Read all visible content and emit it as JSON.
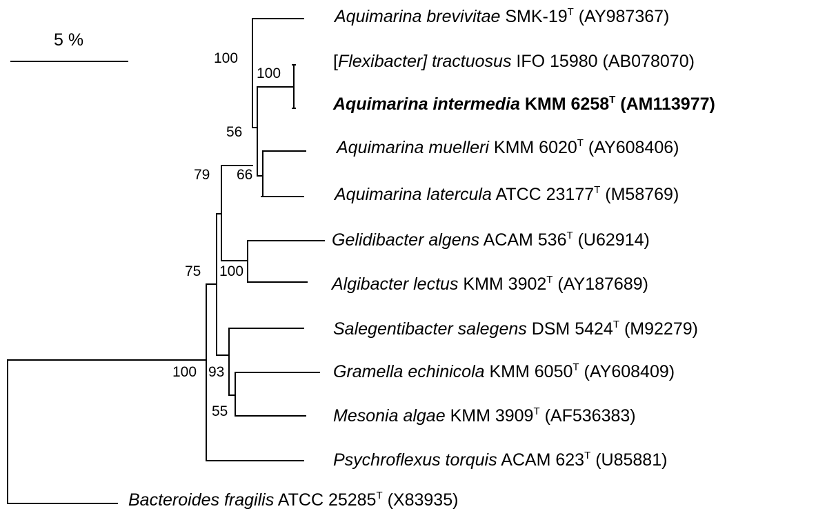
{
  "scale_bar": {
    "label": "5 %"
  },
  "taxa": [
    {
      "id": "a_brevivitae",
      "pre": "",
      "genus_species": "Aquimarina brevivitae",
      "post": "",
      "strain": "SMK-19",
      "type_mark": "T",
      "accession": "(AY987367)",
      "bold": false
    },
    {
      "id": "f_tractuosus",
      "pre": "[",
      "genus_species": "Flexibacter",
      "post": "] tractuosus",
      "strain": "IFO 15980",
      "type_mark": "",
      "accession": "(AB078070)",
      "bold": false
    },
    {
      "id": "a_intermedia",
      "pre": "",
      "genus_species": "Aquimarina intermedia",
      "post": "",
      "strain": "KMM 6258",
      "type_mark": "T",
      "accession": "(AM113977)",
      "bold": true
    },
    {
      "id": "a_muelleri",
      "pre": "",
      "genus_species": "Aquimarina muelleri",
      "post": "",
      "strain": "KMM 6020",
      "type_mark": "T",
      "accession": "(AY608406)",
      "bold": false
    },
    {
      "id": "a_latercula",
      "pre": "",
      "genus_species": "Aquimarina latercula",
      "post": "",
      "strain": "ATCC 23177",
      "type_mark": "T",
      "accession": "(M58769)",
      "bold": false
    },
    {
      "id": "g_algens",
      "pre": "",
      "genus_species": "Gelidibacter algens",
      "post": "",
      "strain": "ACAM 536",
      "type_mark": "T",
      "accession": "(U62914)",
      "bold": false
    },
    {
      "id": "a_lectus",
      "pre": "",
      "genus_species": "Algibacter lectus",
      "post": "",
      "strain": "KMM 3902",
      "type_mark": "T",
      "accession": "(AY187689)",
      "bold": false
    },
    {
      "id": "s_salegens",
      "pre": "",
      "genus_species": "Salegentibacter salegens",
      "post": "",
      "strain": "DSM 5424",
      "type_mark": "T",
      "accession": "(M92279)",
      "bold": false
    },
    {
      "id": "g_echinicola",
      "pre": "",
      "genus_species": "Gramella echinicola",
      "post": "",
      "strain": "KMM 6050",
      "type_mark": "T",
      "accession": "(AY608409)",
      "bold": false
    },
    {
      "id": "m_algae",
      "pre": "",
      "genus_species": "Mesonia algae",
      "post": "",
      "strain": "KMM 3909",
      "type_mark": "T",
      "accession": "(AF536383)",
      "bold": false
    },
    {
      "id": "p_torquis",
      "pre": "",
      "genus_species": "Psychroflexus torquis",
      "post": "",
      "strain": "ACAM 623",
      "type_mark": "T",
      "accession": "(U85881)",
      "bold": false
    },
    {
      "id": "b_fragilis",
      "pre": "",
      "genus_species": "Bacteroides fragilis",
      "post": "",
      "strain": "ATCC 25285",
      "type_mark": "T",
      "accession": "(X83935)",
      "bold": false
    }
  ],
  "bootstrap_values": {
    "aquimarina_clade": "100",
    "intermedia_tractuosus": "100",
    "brevivitae_sister": "56",
    "muelleri_latercula": "66",
    "ingroup_upper": "79",
    "gelidibacter_algibacter": "100",
    "ingroup_all": "75",
    "root_ingroup": "100",
    "salegens_group": "93",
    "echinicola_algae": "55"
  }
}
